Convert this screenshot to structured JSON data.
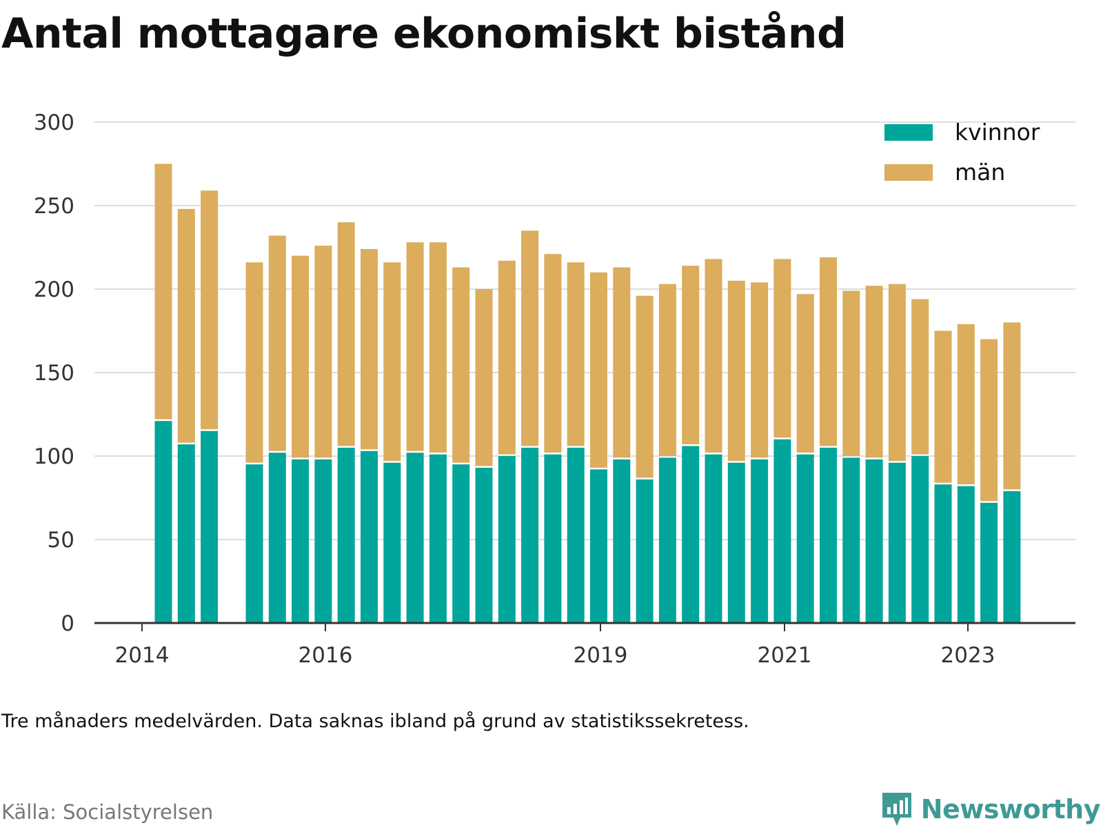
{
  "title": "Antal mottagare ekonomiskt bistånd",
  "caption": "Tre månaders medelvärden. Data saknas ibland på grund av statistikssekretess.",
  "source": "Källa: Socialstyrelsen",
  "brand": {
    "name": "Newsworthy",
    "icon": "newsworthy-logo-icon",
    "color": "#3f9a95"
  },
  "colors": {
    "kvinnor": "#00a59b",
    "man": "#dbad5c",
    "grid": "#dddddd",
    "axis": "#333333"
  },
  "chart_data": {
    "type": "bar",
    "stacked": true,
    "ylim": [
      0,
      300
    ],
    "yticks": [
      0,
      50,
      100,
      150,
      200,
      250,
      300
    ],
    "xticks": [
      "2014",
      "2016",
      "2019",
      "2021",
      "2023"
    ],
    "legend_position": "top-right",
    "grid": true,
    "series": [
      {
        "name": "kvinnor",
        "color": "#00a59b",
        "values": [
          121,
          107,
          115,
          95,
          102,
          98,
          98,
          105,
          103,
          96,
          102,
          101,
          95,
          93,
          100,
          105,
          101,
          105,
          92,
          98,
          86,
          99,
          106,
          101,
          96,
          98,
          110,
          101,
          105,
          99,
          98,
          96,
          100,
          83,
          82,
          72,
          79
        ]
      },
      {
        "name": "män",
        "color": "#dbad5c",
        "values": [
          154,
          141,
          144,
          121,
          130,
          122,
          128,
          135,
          121,
          120,
          126,
          127,
          118,
          107,
          117,
          130,
          120,
          111,
          118,
          115,
          110,
          104,
          108,
          117,
          109,
          106,
          108,
          96,
          114,
          100,
          104,
          107,
          94,
          92,
          97,
          98,
          101
        ]
      }
    ]
  }
}
